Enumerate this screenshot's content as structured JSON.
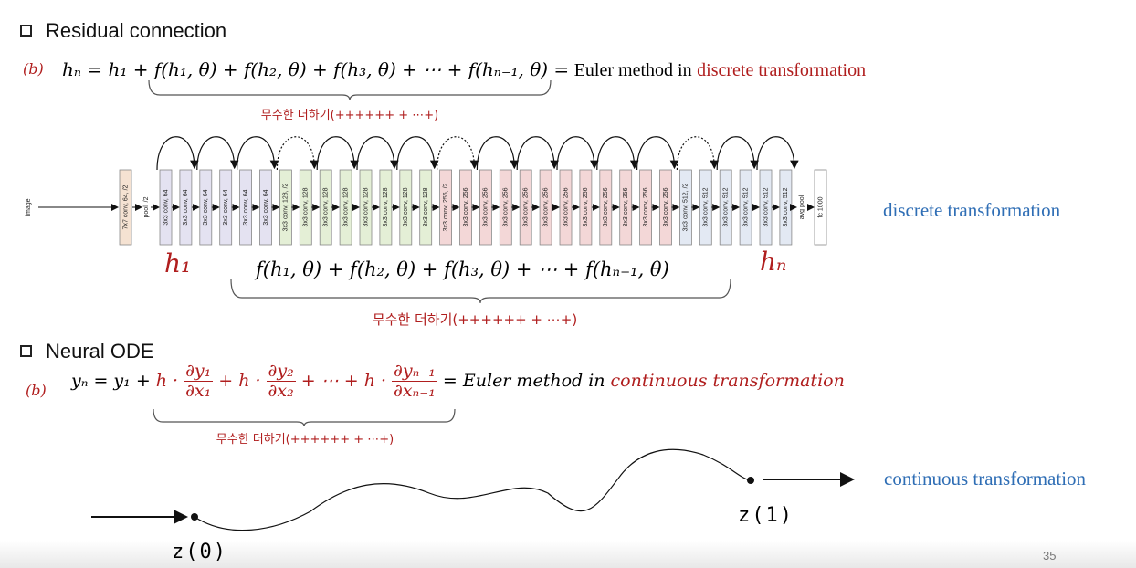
{
  "section1": {
    "heading": "Residual connection",
    "label": "(b)",
    "equation": "hₙ =  h₁ + f(h₁, θ) + f(h₂, θ) + f(h₃, θ) + ⋯ + f(hₙ₋₁, θ) =",
    "equation_text": "Euler method in",
    "equation_highlight": "discrete transformation",
    "brace_label": "무수한 더하기(++++++ + ⋯+)"
  },
  "network": {
    "input": "image",
    "stem": {
      "label": "7x7 conv, 64, /2",
      "color": "#f5e2d2"
    },
    "pool": "pool, /2",
    "blocks": [
      {
        "color": "#e4e2f1",
        "layers": [
          "3x3 conv, 64",
          "3x3 conv, 64",
          "3x3 conv, 64",
          "3x3 conv, 64",
          "3x3 conv, 64",
          "3x3 conv, 64"
        ]
      },
      {
        "color": "#e4efd6",
        "layers": [
          "3x3 conv, 128, /2",
          "3x3 conv, 128",
          "3x3 conv, 128",
          "3x3 conv, 128",
          "3x3 conv, 128",
          "3x3 conv, 128",
          "3x3 conv, 128",
          "3x3 conv, 128"
        ]
      },
      {
        "color": "#f3d7d7",
        "layers": [
          "3x3 conv, 256, /2",
          "3x3 conv, 256",
          "3x3 conv, 256",
          "3x3 conv, 256",
          "3x3 conv, 256",
          "3x3 conv, 256",
          "3x3 conv, 256",
          "3x3 conv, 256",
          "3x3 conv, 256",
          "3x3 conv, 256",
          "3x3 conv, 256",
          "3x3 conv, 256"
        ]
      },
      {
        "color": "#e3e9f3",
        "layers": [
          "3x3 conv, 512, /2",
          "3x3 conv, 512",
          "3x3 conv, 512",
          "3x3 conv, 512",
          "3x3 conv, 512",
          "3x3 conv, 512"
        ]
      }
    ],
    "avg_pool": "avg pool",
    "fc": "fc 1000",
    "h_first": "h₁",
    "h_last": "hₙ",
    "sum": "f(h₁, θ) + f(h₂, θ) + f(h₃, θ) + ⋯ + f(hₙ₋₁, θ)",
    "brace_label": "무수한 더하기(++++++ + ⋯+)",
    "caption": "discrete transformation"
  },
  "section2": {
    "heading": "Neural ODE",
    "label": "(b)",
    "equation": {
      "lhs": "yₙ  = y₁ +",
      "terms": [
        {
          "coef": "h ·",
          "num": "∂y₁",
          "den": "∂x₁"
        },
        {
          "coef": "+ h ·",
          "num": "∂y₂",
          "den": "∂x₂"
        },
        {
          "coef": "+ ⋯ + h ·",
          "num": "∂yₙ₋₁",
          "den": "∂xₙ₋₁"
        }
      ],
      "equals": "= Euler method in",
      "highlight": "continuous transformation"
    },
    "brace_label": "무수한 더하기(++++++ + ⋯+)"
  },
  "trajectory": {
    "start": "z(0)",
    "end": "z(1)",
    "caption": "continuous transformation"
  },
  "page_number": "35"
}
